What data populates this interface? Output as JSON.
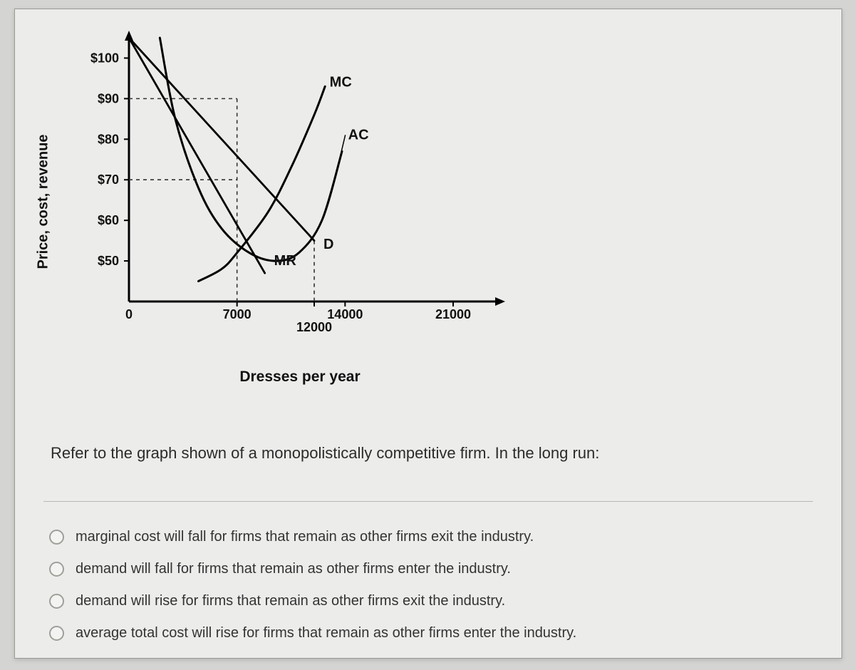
{
  "chart": {
    "type": "economics-curves",
    "y_axis_label": "Price, cost, revenue",
    "x_axis_label": "Dresses per year",
    "background_color": "#ececea",
    "axis_color": "#000000",
    "axis_width": 3,
    "dash_color": "#333333",
    "y_ticks": [
      {
        "value": 100,
        "label": "$100"
      },
      {
        "value": 90,
        "label": "$90"
      },
      {
        "value": 80,
        "label": "$80"
      },
      {
        "value": 70,
        "label": "$70"
      },
      {
        "value": 60,
        "label": "$60"
      },
      {
        "value": 50,
        "label": "$50"
      }
    ],
    "y_range": [
      40,
      105
    ],
    "x_ticks": [
      {
        "value": 0,
        "label": "0"
      },
      {
        "value": 7000,
        "label": "7000"
      },
      {
        "value": 12000,
        "label": "12000"
      },
      {
        "value": 14000,
        "label": "14000"
      },
      {
        "value": 21000,
        "label": "21000"
      }
    ],
    "x_range": [
      0,
      24000
    ],
    "curves": {
      "MC": {
        "label": "MC",
        "color": "#000000",
        "width": 3,
        "points": [
          [
            4500,
            45
          ],
          [
            6000,
            48
          ],
          [
            7000,
            52
          ],
          [
            9000,
            62
          ],
          [
            10500,
            73
          ],
          [
            12000,
            86
          ],
          [
            12700,
            93
          ]
        ]
      },
      "AC": {
        "label": "AC",
        "color": "#000000",
        "width": 3,
        "points": [
          [
            2000,
            105
          ],
          [
            3000,
            85
          ],
          [
            4500,
            68
          ],
          [
            6000,
            58
          ],
          [
            7800,
            52
          ],
          [
            9500,
            50
          ],
          [
            11000,
            52
          ],
          [
            12500,
            60
          ],
          [
            13800,
            77
          ]
        ]
      },
      "D": {
        "label": "D",
        "color": "#000000",
        "width": 2.8,
        "points": [
          [
            0,
            105
          ],
          [
            12000,
            55
          ]
        ]
      },
      "MR": {
        "label": "MR",
        "color": "#000000",
        "width": 2.8,
        "points": [
          [
            0,
            105
          ],
          [
            8800,
            47
          ]
        ]
      }
    },
    "dashed_refs": [
      {
        "type": "h",
        "y": 90,
        "x_to": 7000
      },
      {
        "type": "h",
        "y": 70,
        "x_to": 7000
      },
      {
        "type": "v",
        "x": 7000,
        "y_from": 90,
        "y_to_axis": true
      },
      {
        "type": "v",
        "x": 12000,
        "y_from": 55,
        "y_to_axis": true
      }
    ],
    "curve_label_positions": {
      "MC": {
        "x": 13000,
        "y": 93
      },
      "AC": {
        "x": 14200,
        "y": 80
      },
      "D": {
        "x": 12600,
        "y": 53
      },
      "MR": {
        "x": 9400,
        "y": 49
      }
    }
  },
  "question_text": "Refer to the graph shown of a monopolistically competitive firm. In the long run:",
  "answers": [
    "marginal cost will fall for firms that remain as other firms exit the industry.",
    "demand will fall for firms that remain as other firms enter the industry.",
    "demand will rise for firms that remain as other firms exit the industry.",
    "average total cost will rise for firms that remain as other firms enter the industry."
  ]
}
